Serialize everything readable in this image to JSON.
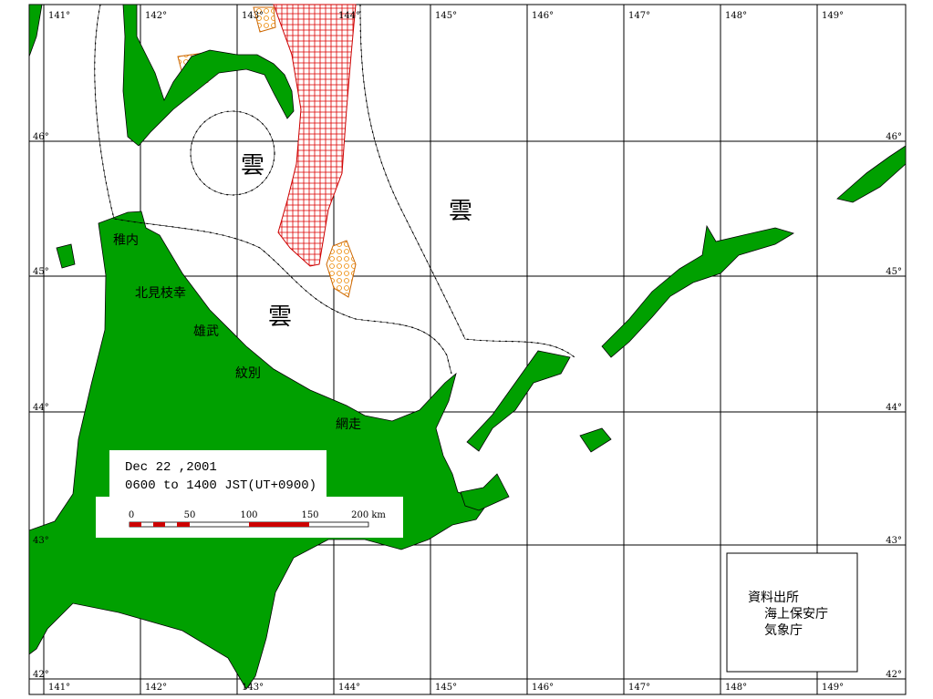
{
  "map": {
    "longitude_labels_top": [
      "141°",
      "142°",
      "143°",
      "144°",
      "145°",
      "146°",
      "147°",
      "148°",
      "149°"
    ],
    "longitude_labels_bottom": [
      "141°",
      "142°",
      "143°",
      "144°",
      "145°",
      "146°",
      "147°",
      "148°",
      "149°"
    ],
    "latitude_labels_left": [
      "46°",
      "45°",
      "44°",
      "43°",
      "42°"
    ],
    "latitude_labels_right": [
      "46°",
      "45°",
      "44°",
      "43°",
      "42°"
    ],
    "place_names": [
      "稚内",
      "北見枝幸",
      "雄武",
      "紋別",
      "網走"
    ],
    "cloud_labels": [
      "雲",
      "雲",
      "雲"
    ],
    "legend": {
      "date": "Dec 22 ,2001",
      "time": "0600 to 1400 JST(UT+0900)"
    },
    "scale_labels": [
      "0",
      "50",
      "100",
      "150",
      "200 km"
    ],
    "source": {
      "title": "資料出所",
      "agencies": [
        "海上保安庁",
        "気象庁"
      ]
    }
  }
}
